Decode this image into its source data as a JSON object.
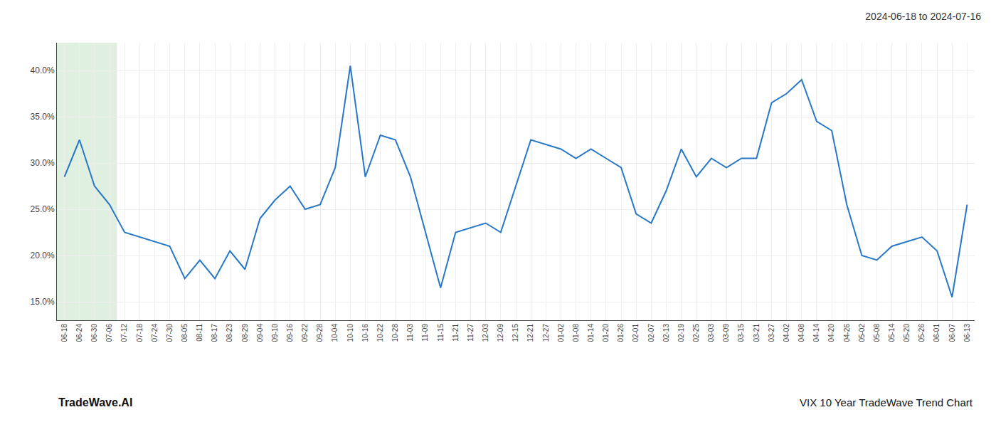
{
  "chart_data": {
    "type": "line",
    "title": "2024-06-18 to 2024-07-16",
    "annotations": [
      "TradeWave.AI",
      "VIX 10 Year TradeWave Trend Chart"
    ],
    "color": "#2878c8",
    "grid": true,
    "ylim": [
      13.0,
      43.0
    ],
    "yticks": [
      {
        "value": 15.0,
        "label": "15.0%"
      },
      {
        "value": 20.0,
        "label": "20.0%"
      },
      {
        "value": 25.0,
        "label": "25.0%"
      },
      {
        "value": 30.0,
        "label": "30.0%"
      },
      {
        "value": 35.0,
        "label": "35.0%"
      },
      {
        "value": 40.0,
        "label": "40.0%"
      }
    ],
    "shade": {
      "start": "06-18",
      "end": "07-06",
      "color": "#e0f0e0"
    },
    "categories": [
      "06-18",
      "06-24",
      "06-30",
      "07-06",
      "07-12",
      "07-18",
      "07-24",
      "07-30",
      "08-05",
      "08-11",
      "08-17",
      "08-23",
      "08-29",
      "09-04",
      "09-10",
      "09-16",
      "09-22",
      "09-28",
      "10-04",
      "10-10",
      "10-16",
      "10-22",
      "10-28",
      "11-03",
      "11-09",
      "11-15",
      "11-21",
      "11-27",
      "12-03",
      "12-09",
      "12-15",
      "12-21",
      "12-27",
      "01-02",
      "01-08",
      "01-14",
      "01-20",
      "01-26",
      "02-01",
      "02-07",
      "02-13",
      "02-19",
      "02-25",
      "03-03",
      "03-09",
      "03-15",
      "03-21",
      "03-27",
      "04-02",
      "04-08",
      "04-14",
      "04-20",
      "04-26",
      "05-02",
      "05-08",
      "05-14",
      "05-20",
      "05-26",
      "06-01",
      "06-07",
      "06-13"
    ],
    "values": [
      28.5,
      32.5,
      27.5,
      25.5,
      22.5,
      22.0,
      21.5,
      21.0,
      17.5,
      19.5,
      17.5,
      20.5,
      18.5,
      24.0,
      26.0,
      27.5,
      25.0,
      25.5,
      29.5,
      40.5,
      28.5,
      33.0,
      32.5,
      28.5,
      22.5,
      16.5,
      22.5,
      23.0,
      23.5,
      22.5,
      27.5,
      32.5,
      32.0,
      31.5,
      30.5,
      31.5,
      30.5,
      29.5,
      24.5,
      23.5,
      27.0,
      31.5,
      28.5,
      30.5,
      29.5,
      30.5,
      30.5,
      36.5,
      37.5,
      39.0,
      34.5,
      33.5,
      25.5,
      20.0,
      19.5,
      21.0,
      21.5,
      22.0,
      20.5,
      15.5,
      25.5
    ]
  }
}
